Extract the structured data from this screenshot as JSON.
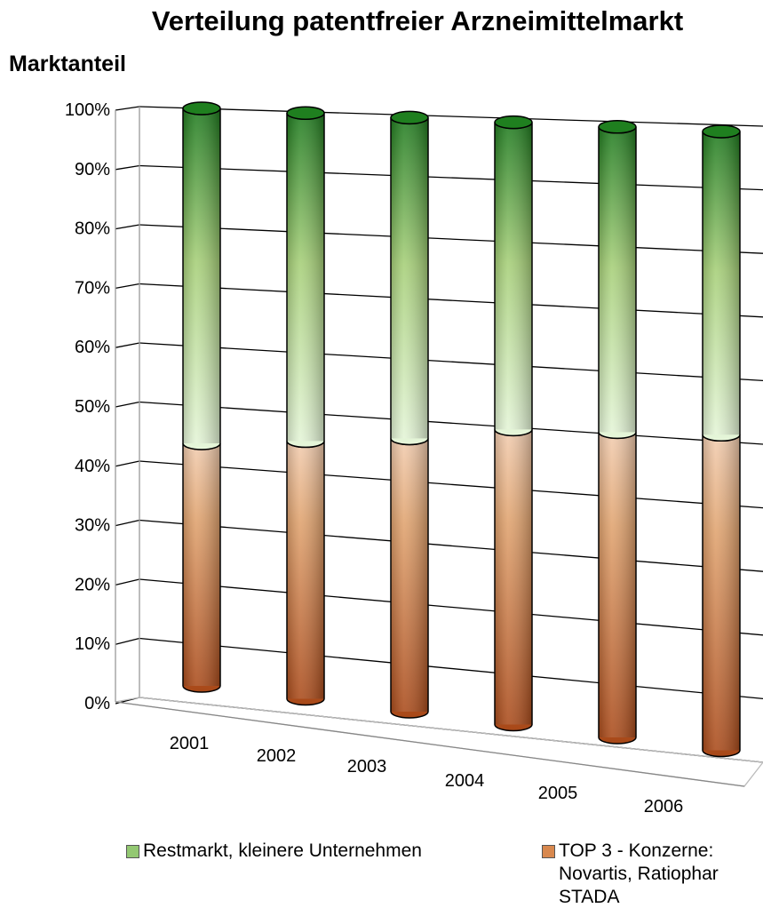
{
  "chart_data": {
    "type": "bar",
    "stacked": true,
    "style": "3d-cylinder",
    "title": "Verteilung patentfreier Arzneimittelmarkt",
    "ylabel": "Marktanteil",
    "xlabel": "",
    "categories": [
      "2001",
      "2002",
      "2003",
      "2004",
      "2005",
      "2006"
    ],
    "series": [
      {
        "name": "TOP 3 - Konzerne:\nNovartis, Ratiophar\nSTADA",
        "values": [
          0.42,
          0.44,
          0.46,
          0.49,
          0.5,
          0.51
        ],
        "color": "#D8884E"
      },
      {
        "name": "Restmarkt, kleinere Unternehmen",
        "values": [
          0.58,
          0.56,
          0.54,
          0.51,
          0.5,
          0.49
        ],
        "color": "#6FBF4F"
      }
    ],
    "ylim": [
      0,
      1
    ],
    "yticks": [
      "0%",
      "10%",
      "20%",
      "30%",
      "40%",
      "50%",
      "60%",
      "70%",
      "80%",
      "90%",
      "100%"
    ],
    "grid": true,
    "legend_position": "bottom"
  }
}
